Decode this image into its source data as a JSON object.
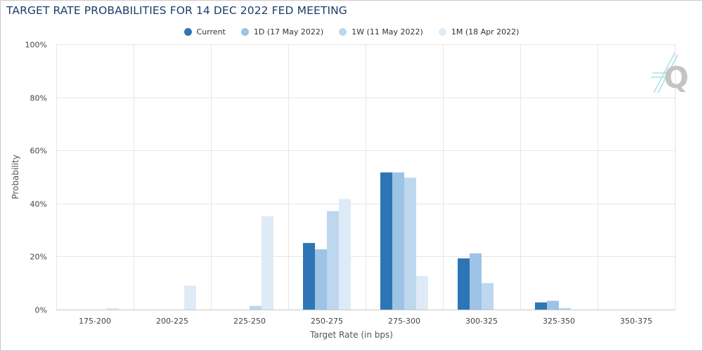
{
  "chart_data": {
    "type": "bar",
    "title": "TARGET RATE PROBABILITIES FOR 14 DEC 2022 FED MEETING",
    "xlabel": "Target Rate (in bps)",
    "ylabel": "Probability",
    "ylim": [
      0,
      100
    ],
    "y_ticks": [
      "0%",
      "20%",
      "40%",
      "60%",
      "80%",
      "100%"
    ],
    "y_tick_values": [
      0,
      20,
      40,
      60,
      80,
      100
    ],
    "grid": true,
    "legend_position": "top-center",
    "categories": [
      "175-200",
      "200-225",
      "225-250",
      "250-275",
      "275-300",
      "300-325",
      "325-350",
      "350-375"
    ],
    "series": [
      {
        "name": "Current",
        "color": "#2e75b6",
        "values": [
          0,
          0,
          0,
          25.1,
          51.7,
          19.3,
          2.7,
          0
        ]
      },
      {
        "name": "1D (17 May 2022)",
        "color": "#9dc3e6",
        "values": [
          0,
          0,
          0,
          22.7,
          51.7,
          21.2,
          3.3,
          0
        ]
      },
      {
        "name": "1W (11 May 2022)",
        "color": "#bdd7ee",
        "values": [
          0,
          0,
          1.4,
          37.1,
          49.7,
          10.0,
          0.6,
          0
        ]
      },
      {
        "name": "1M (18 Apr 2022)",
        "color": "#deebf7",
        "values": [
          0.6,
          9.0,
          35.2,
          41.7,
          12.7,
          0,
          0,
          0
        ]
      }
    ]
  },
  "watermark": {
    "letter": "Q",
    "icon": "quikstrike-logo"
  }
}
